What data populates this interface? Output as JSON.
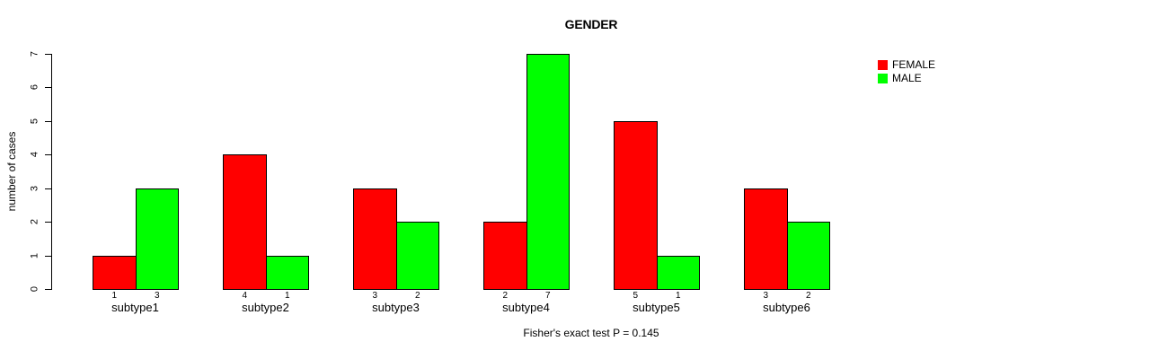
{
  "chart": {
    "title": "GENDER",
    "y_axis_label": "number of cases",
    "annotation": "Fisher's exact test P = 0.145",
    "background_color": "#FFFFFF",
    "axis_color": "#000000"
  },
  "legend": {
    "position": "top-right",
    "items": [
      {
        "label": "FEMALE",
        "color": "#FF0000"
      },
      {
        "label": "MALE",
        "color": "#00FF00"
      }
    ]
  },
  "chart_data": {
    "type": "bar",
    "title": "GENDER",
    "xlabel": "",
    "ylabel": "number of cases",
    "categories": [
      "subtype1",
      "subtype2",
      "subtype3",
      "subtype4",
      "subtype5",
      "subtype6"
    ],
    "series": [
      {
        "name": "FEMALE",
        "color": "#FF0000",
        "values": [
          1,
          4,
          3,
          2,
          5,
          3
        ]
      },
      {
        "name": "MALE",
        "color": "#00FF00",
        "values": [
          3,
          1,
          2,
          7,
          1,
          2
        ]
      }
    ],
    "bar_value_labels_shown": true,
    "ylim": [
      0,
      7
    ],
    "yticks": [
      0,
      1,
      2,
      3,
      4,
      5,
      6,
      7
    ],
    "grid": false,
    "legend_position": "top-right",
    "annotation": "Fisher's exact test P = 0.145"
  }
}
